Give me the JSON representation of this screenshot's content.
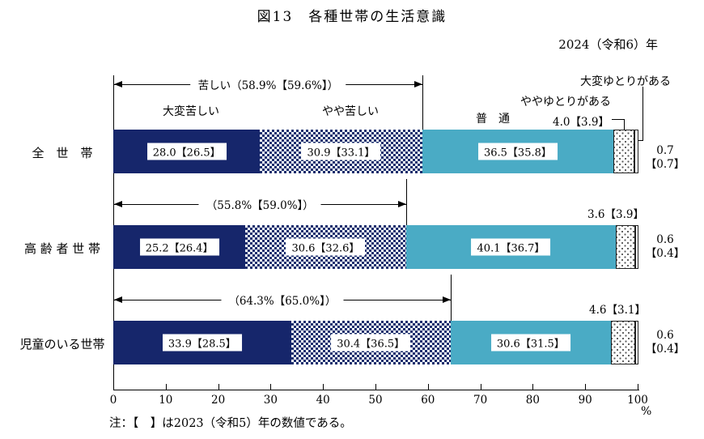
{
  "title": "図13　各種世帯の生活意識",
  "year_label": "2024（令和6）年",
  "note": "注：【　】は2023（令和5）年の数値である。",
  "axis": {
    "ticks": [
      "0",
      "10",
      "20",
      "30",
      "40",
      "50",
      "60",
      "70",
      "80",
      "90",
      "100"
    ],
    "unit": "%"
  },
  "legend": {
    "very_hard": "大変苦しい",
    "somewhat_hard": "やや苦しい",
    "normal": "普　通",
    "somewhat_comfortable": "ややゆとりがある",
    "very_comfortable": "大変ゆとりがある"
  },
  "colors": {
    "very_hard": "#16266b",
    "somewhat_hard_pattern": "#1b2f6e",
    "normal": "#4aabc5",
    "somewhat_comfortable_pattern": "#555555",
    "very_comfortable": "#ffffff"
  },
  "chart_data": {
    "type": "bar",
    "stacked": true,
    "orientation": "horizontal",
    "xlim": [
      0,
      100
    ],
    "x_unit": "%",
    "grid": false,
    "categories": [
      "全世帯",
      "高齢者世帯",
      "児童のいる世帯"
    ],
    "series": [
      {
        "name": "大変苦しい",
        "values": [
          28.0,
          25.2,
          33.9
        ],
        "values_2023": [
          26.5,
          26.4,
          28.5
        ]
      },
      {
        "name": "やや苦しい",
        "values": [
          30.9,
          30.6,
          30.4
        ],
        "values_2023": [
          33.1,
          32.6,
          36.5
        ]
      },
      {
        "name": "普通",
        "values": [
          36.5,
          40.1,
          30.6
        ],
        "values_2023": [
          35.8,
          36.7,
          31.5
        ]
      },
      {
        "name": "ややゆとりがある",
        "values": [
          4.0,
          3.6,
          4.6
        ],
        "values_2023": [
          3.9,
          3.9,
          3.1
        ]
      },
      {
        "name": "大変ゆとりがある",
        "values": [
          0.7,
          0.6,
          0.6
        ],
        "values_2023": [
          0.7,
          0.4,
          0.4
        ]
      }
    ],
    "hard_totals": [
      58.9,
      55.8,
      64.3
    ],
    "hard_totals_2023": [
      59.6,
      59.0,
      65.0
    ]
  },
  "rows": [
    {
      "category": "全　世　帯",
      "bracket_label": "苦しい（58.9%【59.6%】）",
      "seg_labels": [
        "28.0【26.5】",
        "30.9【33.1】",
        "36.5【35.8】"
      ],
      "above_label": "4.0【3.9】",
      "right_label_line1": "0.7",
      "right_label_line2": "【0.7】"
    },
    {
      "category": "高 齢 者 世 帯",
      "bracket_label": "（55.8%【59.0%】）",
      "seg_labels": [
        "25.2【26.4】",
        "30.6【32.6】",
        "40.1【36.7】"
      ],
      "above_label": "3.6【3.9】",
      "right_label_line1": "0.6",
      "right_label_line2": "【0.4】"
    },
    {
      "category": "児童のいる世帯",
      "bracket_label": "（64.3%【65.0%】）",
      "seg_labels": [
        "33.9【28.5】",
        "30.4【36.5】",
        "30.6【31.5】"
      ],
      "above_label": "4.6【3.1】",
      "right_label_line1": "0.6",
      "right_label_line2": "【0.4】"
    }
  ]
}
